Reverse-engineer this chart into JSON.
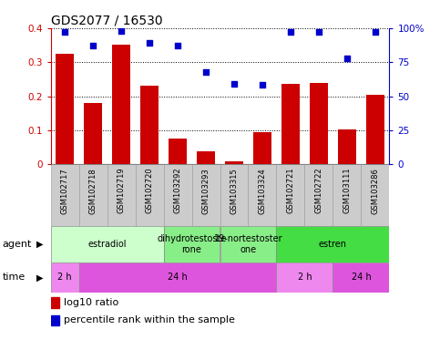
{
  "title": "GDS2077 / 16530",
  "samples": [
    "GSM102717",
    "GSM102718",
    "GSM102719",
    "GSM102720",
    "GSM103292",
    "GSM103293",
    "GSM103315",
    "GSM103324",
    "GSM102721",
    "GSM102722",
    "GSM103111",
    "GSM103286"
  ],
  "log10_ratio": [
    0.325,
    0.18,
    0.35,
    0.23,
    0.075,
    0.04,
    0.01,
    0.095,
    0.235,
    0.24,
    0.102,
    0.205
  ],
  "percentile_rank_pct": [
    97,
    87,
    98,
    89,
    87,
    68,
    59,
    58.5,
    97,
    97,
    78,
    97
  ],
  "bar_color": "#cc0000",
  "dot_color": "#0000cc",
  "ylim_left": [
    0,
    0.4
  ],
  "yticks_left": [
    0,
    0.1,
    0.2,
    0.3,
    0.4
  ],
  "ytick_labels_left": [
    "0",
    "0.1",
    "0.2",
    "0.3",
    "0.4"
  ],
  "yticks_right": [
    0,
    25,
    50,
    75,
    100
  ],
  "ytick_labels_right": [
    "0",
    "25",
    "50",
    "75",
    "100%"
  ],
  "agent_labels": [
    {
      "label": "estradiol",
      "start": 0,
      "end": 4,
      "color": "#ccffcc"
    },
    {
      "label": "dihydrotestoste\nrone",
      "start": 4,
      "end": 6,
      "color": "#88ee88"
    },
    {
      "label": "19-nortestoster\none",
      "start": 6,
      "end": 8,
      "color": "#88ee88"
    },
    {
      "label": "estren",
      "start": 8,
      "end": 12,
      "color": "#44dd44"
    }
  ],
  "time_labels": [
    {
      "label": "2 h",
      "start": 0,
      "end": 1,
      "color": "#ee88ee"
    },
    {
      "label": "24 h",
      "start": 1,
      "end": 8,
      "color": "#dd55dd"
    },
    {
      "label": "2 h",
      "start": 8,
      "end": 10,
      "color": "#ee88ee"
    },
    {
      "label": "24 h",
      "start": 10,
      "end": 12,
      "color": "#dd55dd"
    }
  ],
  "legend_red_label": "log10 ratio",
  "legend_blue_label": "percentile rank within the sample",
  "agent_row_label": "agent",
  "time_row_label": "time",
  "left_axis_color": "#cc0000",
  "right_axis_color": "#0000cc",
  "background_color": "#ffffff",
  "sample_box_color": "#cccccc",
  "sample_box_edge": "#999999",
  "title_fontsize": 10,
  "tick_fontsize": 7.5,
  "sample_fontsize": 6,
  "strip_fontsize": 7,
  "legend_fontsize": 8
}
